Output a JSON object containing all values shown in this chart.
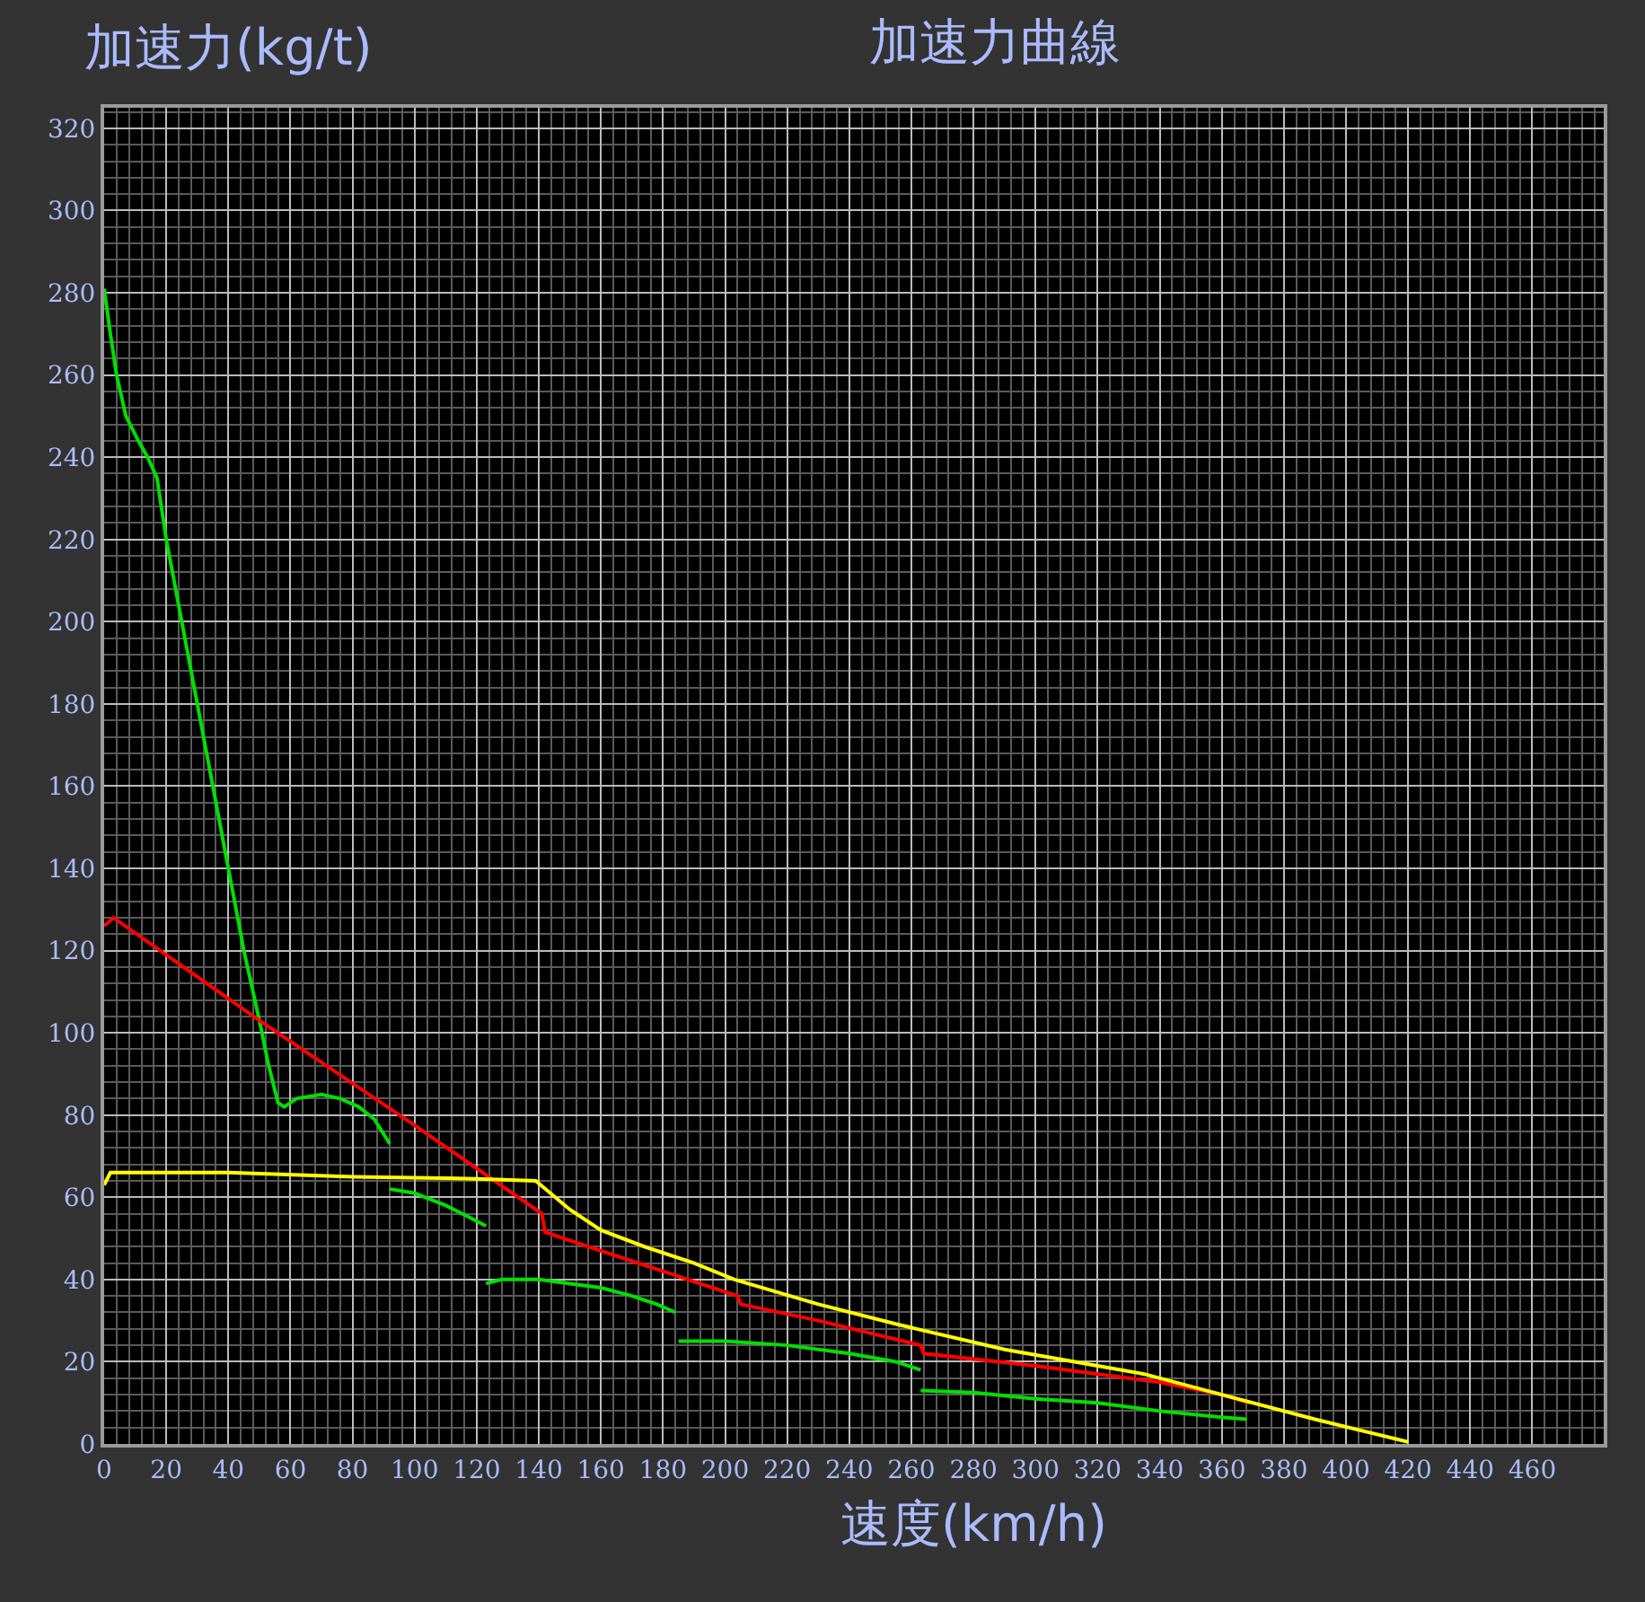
{
  "chart_data": {
    "type": "line",
    "title": "加速力曲線",
    "xlabel": "速度(km/h)",
    "ylabel": "加速力(kg/t)",
    "xlim": [
      0,
      483
    ],
    "ylim": [
      0,
      325
    ],
    "xticks": [
      0,
      20,
      40,
      60,
      80,
      100,
      120,
      140,
      160,
      180,
      200,
      220,
      240,
      260,
      280,
      300,
      320,
      340,
      360,
      380,
      400,
      420,
      440,
      460
    ],
    "yticks": [
      0,
      20,
      40,
      60,
      80,
      100,
      120,
      140,
      160,
      180,
      200,
      220,
      240,
      260,
      280,
      300,
      320
    ],
    "grid": true,
    "marker": "none",
    "line_style": "solid",
    "series": [
      {
        "color": "#00e000",
        "x": [
          0,
          2,
          4,
          7,
          11,
          14,
          17,
          20,
          25,
          30,
          35,
          40,
          45,
          50,
          53,
          56,
          58,
          62,
          70,
          76,
          82,
          87,
          92
        ],
        "values": [
          281,
          270,
          260,
          250,
          244,
          240,
          235,
          220,
          200,
          180,
          160,
          140,
          120,
          103,
          92,
          83,
          82,
          84,
          85,
          84,
          82,
          79,
          73
        ]
      },
      {
        "color": "#00e000",
        "x": [
          92,
          100,
          110,
          118,
          123
        ],
        "values": [
          62,
          61,
          58,
          55,
          53
        ]
      },
      {
        "color": "#00e000",
        "x": [
          123,
          128,
          140,
          150,
          160,
          170,
          178,
          184
        ],
        "values": [
          39,
          40,
          40,
          39,
          38,
          36,
          34,
          32
        ]
      },
      {
        "color": "#00e000",
        "x": [
          185,
          200,
          220,
          240,
          255,
          263
        ],
        "values": [
          25,
          25,
          24,
          22,
          20,
          18
        ]
      },
      {
        "color": "#00e000",
        "x": [
          263,
          280,
          300,
          320,
          340,
          360,
          368
        ],
        "values": [
          13,
          12.5,
          11,
          10,
          8,
          6.5,
          6
        ]
      },
      {
        "color": "#ff0000",
        "x": [
          0,
          3,
          50,
          100,
          141,
          142,
          160,
          180,
          204,
          205,
          230,
          263,
          264,
          300,
          340,
          360,
          369
        ],
        "values": [
          126,
          128,
          103,
          77.5,
          56,
          51.5,
          47,
          42,
          36,
          34,
          30,
          24,
          22,
          19,
          15,
          12,
          10
        ]
      },
      {
        "color": "#ffff00",
        "x": [
          0,
          2,
          40,
          80,
          120,
          139,
          150,
          160,
          174,
          190,
          203,
          230,
          256,
          290,
          320,
          335,
          360,
          390,
          420
        ],
        "values": [
          63,
          66,
          66,
          65,
          64.5,
          64,
          57,
          52,
          48,
          44,
          40,
          34,
          29,
          23,
          19,
          17,
          12,
          6,
          0.5
        ]
      }
    ]
  }
}
